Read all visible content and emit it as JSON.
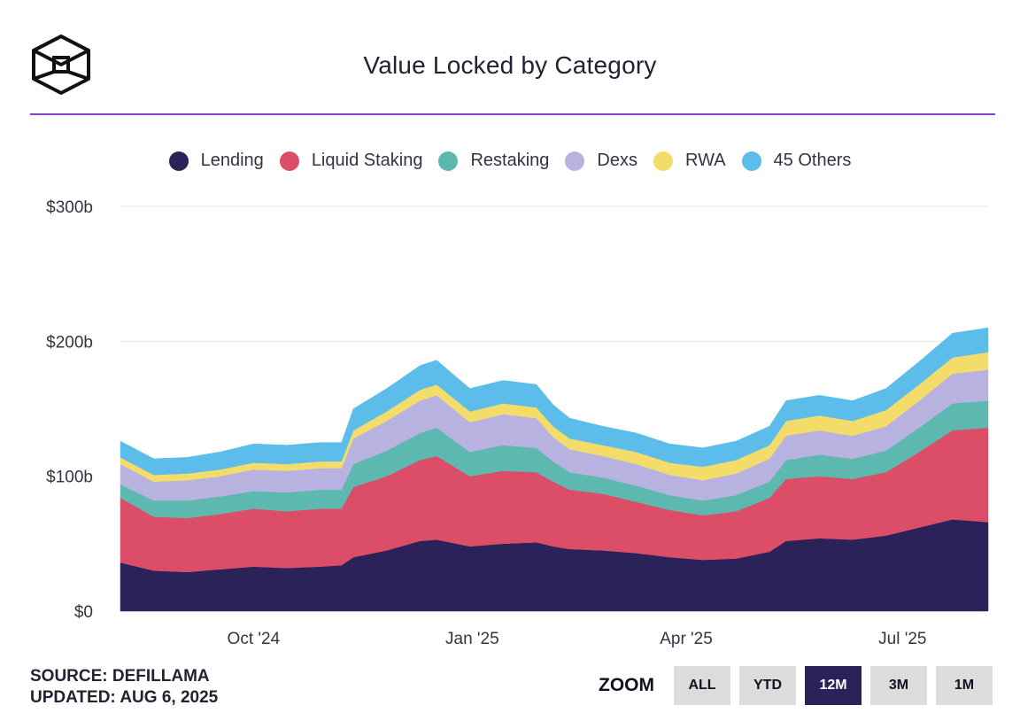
{
  "header": {
    "title": "Value Locked by Category"
  },
  "footer": {
    "source": "SOURCE: DEFILLAMA",
    "updated": "UPDATED: AUG 6, 2025"
  },
  "zoom": {
    "label": "ZOOM",
    "buttons": [
      "ALL",
      "YTD",
      "12M",
      "3M",
      "1M"
    ],
    "active": "12M"
  },
  "colors": {
    "accent_rule": "#8a3fd1",
    "active_button": "#2a2258"
  },
  "chart_data": {
    "type": "area",
    "stacked": true,
    "title": "Value Locked by Category",
    "ylabel": "",
    "xlabel": "",
    "ylim": [
      0,
      300
    ],
    "y_ticks": [
      "$0",
      "$100b",
      "$200b",
      "$300b"
    ],
    "y_tick_values": [
      0,
      100,
      200,
      300
    ],
    "x_ticks": [
      "Oct '24",
      "Jan '25",
      "Apr '25",
      "Jul '25"
    ],
    "x_tick_dates": [
      "2024-10-01",
      "2025-01-01",
      "2025-04-01",
      "2025-07-01"
    ],
    "x_start": "2024-08-06",
    "x_end": "2025-08-06",
    "grid": true,
    "legend_position": "top",
    "dates": [
      "2024-08-06",
      "2024-08-20",
      "2024-09-03",
      "2024-09-17",
      "2024-10-01",
      "2024-10-15",
      "2024-10-29",
      "2024-11-07",
      "2024-11-12",
      "2024-11-26",
      "2024-12-10",
      "2024-12-17",
      "2024-12-31",
      "2025-01-14",
      "2025-01-28",
      "2025-02-04",
      "2025-02-11",
      "2025-02-25",
      "2025-03-11",
      "2025-03-25",
      "2025-04-08",
      "2025-04-22",
      "2025-05-06",
      "2025-05-13",
      "2025-05-27",
      "2025-06-10",
      "2025-06-24",
      "2025-07-08",
      "2025-07-22",
      "2025-08-06"
    ],
    "series": [
      {
        "name": "Lending",
        "color": "#2a2258",
        "values": [
          36,
          30,
          29,
          31,
          33,
          32,
          33,
          34,
          40,
          45,
          52,
          53,
          48,
          50,
          51,
          48,
          46,
          45,
          43,
          40,
          38,
          39,
          44,
          52,
          54,
          53,
          56,
          62,
          68,
          66
        ]
      },
      {
        "name": "Liquid Staking",
        "color": "#dc4e68",
        "values": [
          48,
          40,
          40,
          41,
          43,
          42,
          43,
          42,
          52,
          55,
          60,
          62,
          52,
          54,
          52,
          48,
          44,
          42,
          38,
          35,
          33,
          35,
          40,
          46,
          46,
          45,
          47,
          56,
          66,
          70
        ]
      },
      {
        "name": "Restaking",
        "color": "#5db8b0",
        "values": [
          10,
          12,
          13,
          13,
          13,
          14,
          14,
          14,
          17,
          19,
          20,
          21,
          18,
          19,
          18,
          15,
          13,
          12,
          12,
          11,
          11,
          12,
          12,
          14,
          16,
          15,
          16,
          18,
          20,
          20
        ]
      },
      {
        "name": "Dexs",
        "color": "#b8b2e0",
        "values": [
          15,
          14,
          15,
          15,
          16,
          16,
          16,
          16,
          19,
          22,
          24,
          24,
          22,
          23,
          22,
          18,
          17,
          16,
          16,
          15,
          15,
          16,
          17,
          18,
          18,
          17,
          18,
          20,
          22,
          23
        ]
      },
      {
        "name": "RWA",
        "color": "#f4dc6a",
        "values": [
          5,
          5,
          5,
          5,
          5,
          5,
          5,
          5,
          6,
          7,
          8,
          8,
          8,
          8,
          8,
          8,
          8,
          8,
          9,
          9,
          10,
          10,
          10,
          11,
          11,
          11,
          12,
          12,
          12,
          13
        ]
      },
      {
        "name": "45 Others",
        "color": "#5cbdea",
        "values": [
          12,
          12,
          12,
          13,
          14,
          14,
          14,
          14,
          16,
          17,
          18,
          18,
          17,
          17,
          17,
          16,
          15,
          14,
          14,
          14,
          14,
          14,
          14,
          15,
          15,
          15,
          16,
          17,
          18,
          18
        ]
      }
    ]
  }
}
